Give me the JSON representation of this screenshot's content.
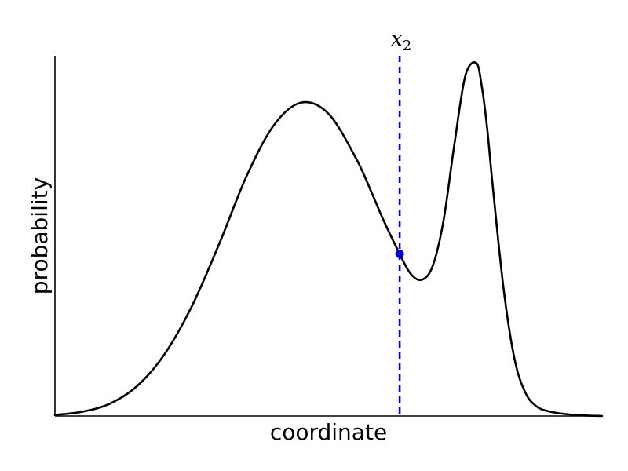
{
  "chart_data": {
    "type": "line",
    "title": "",
    "xlabel": "coordinate",
    "ylabel": "probability",
    "xlim": [
      0,
      10
    ],
    "ylim": [
      0,
      1.0
    ],
    "show_ticks": false,
    "grid": false,
    "series": [
      {
        "x": [
          0.0,
          0.5,
          1.0,
          1.5,
          2.0,
          2.5,
          3.0,
          3.5,
          4.0,
          4.5,
          5.0,
          5.5,
          5.8,
          6.0,
          6.3,
          6.5,
          6.7,
          6.9,
          7.1,
          7.3,
          7.5,
          7.7,
          7.8,
          7.9,
          8.0,
          8.2,
          8.4,
          8.6,
          8.8,
          9.0,
          9.3,
          9.6,
          10.0
        ],
        "y": [
          0.003,
          0.012,
          0.034,
          0.083,
          0.171,
          0.304,
          0.477,
          0.665,
          0.807,
          0.87,
          0.839,
          0.716,
          0.616,
          0.545,
          0.45,
          0.395,
          0.378,
          0.415,
          0.541,
          0.754,
          0.944,
          0.98,
          0.916,
          0.798,
          0.64,
          0.353,
          0.158,
          0.064,
          0.027,
          0.014,
          0.006,
          0.002,
          0.0
        ]
      }
    ],
    "marker": {
      "x": 6.3,
      "y": 0.45,
      "label_base": "x",
      "label_sub": "2",
      "color": "#0000cc",
      "style": "dashed"
    },
    "colors": {
      "curve": "#000000",
      "marker": "#0000cc",
      "axis": "#000000"
    }
  }
}
